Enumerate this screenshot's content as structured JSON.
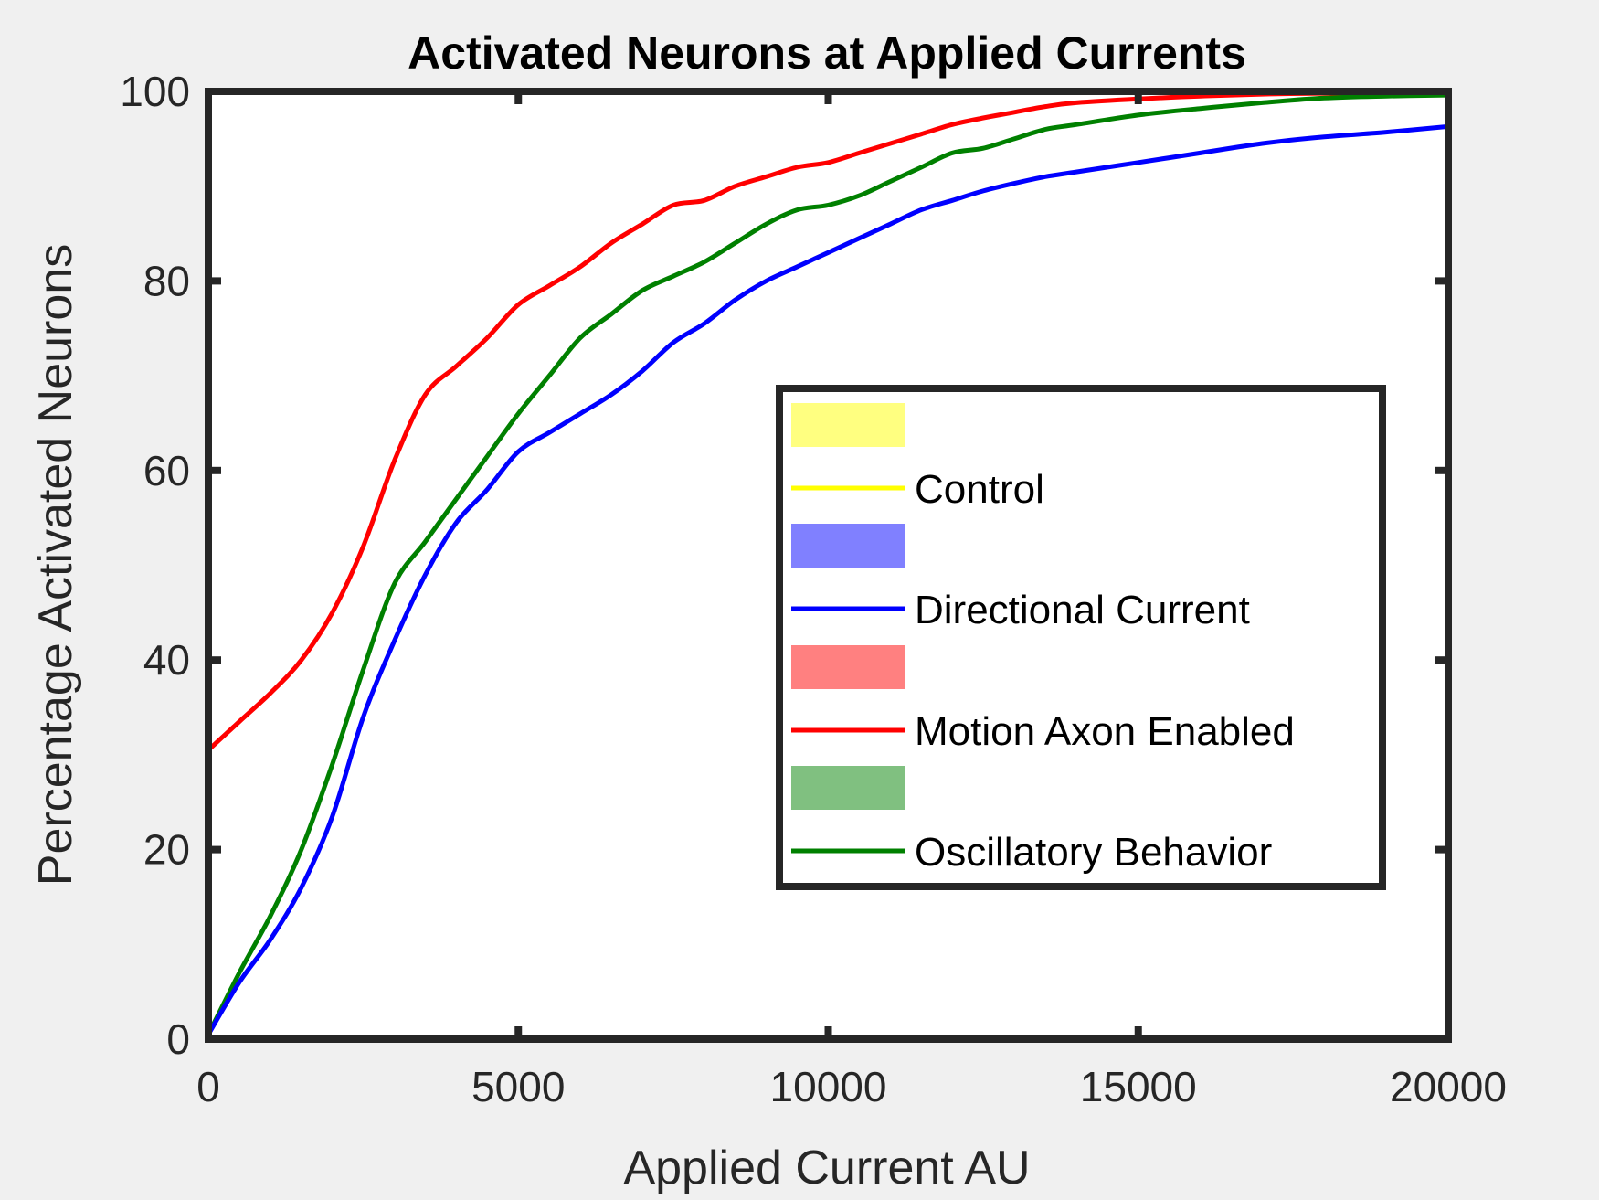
{
  "chart_data": {
    "type": "line",
    "title": "Activated Neurons at Applied Currents",
    "xlabel": "Applied Current AU",
    "ylabel": "Percentage Activated Neurons",
    "xlim": [
      0,
      20000
    ],
    "ylim": [
      0,
      100
    ],
    "xticks": [
      0,
      5000,
      10000,
      15000,
      20000
    ],
    "yticks": [
      0,
      20,
      40,
      60,
      80,
      100
    ],
    "xtick_labels": [
      "0",
      "5000",
      "10000",
      "15000",
      "20000"
    ],
    "ytick_labels": [
      "0",
      "20",
      "40",
      "60",
      "80",
      "100"
    ],
    "grid": false,
    "legend_position": "center-right",
    "legend": [
      {
        "kind": "patch",
        "label": "",
        "color": "#ffff80"
      },
      {
        "kind": "line",
        "label": "Control",
        "color": "#ffff00"
      },
      {
        "kind": "patch",
        "label": "",
        "color": "#8080ff"
      },
      {
        "kind": "line",
        "label": "Directional Current",
        "color": "#0000ff"
      },
      {
        "kind": "patch",
        "label": "",
        "color": "#ff8080"
      },
      {
        "kind": "line",
        "label": "Motion Axon Enabled",
        "color": "#ff0000"
      },
      {
        "kind": "patch",
        "label": "",
        "color": "#80c080"
      },
      {
        "kind": "line",
        "label": "Oscillatory Behavior",
        "color": "#008000"
      }
    ],
    "series": [
      {
        "name": "Motion Axon Enabled",
        "color": "#ff0000",
        "x": [
          0,
          500,
          1000,
          1500,
          2000,
          2500,
          3000,
          3500,
          4000,
          4500,
          5000,
          5500,
          6000,
          6500,
          7000,
          7500,
          8000,
          8500,
          9000,
          9500,
          10000,
          10500,
          11000,
          11500,
          12000,
          12500,
          13000,
          13500,
          14000,
          15000,
          16000,
          17000,
          18000,
          19000,
          20000
        ],
        "y": [
          30.5,
          33.5,
          36.5,
          40,
          45,
          52,
          61,
          68,
          71,
          74,
          77.5,
          79.5,
          81.5,
          84,
          86,
          88,
          88.5,
          90,
          91,
          92,
          92.5,
          93.5,
          94.5,
          95.5,
          96.5,
          97.2,
          97.8,
          98.4,
          98.8,
          99.2,
          99.5,
          99.7,
          99.8,
          99.8,
          99.8
        ]
      },
      {
        "name": "Oscillatory Behavior",
        "color": "#008000",
        "x": [
          0,
          500,
          1000,
          1500,
          2000,
          2500,
          3000,
          3500,
          4000,
          4500,
          5000,
          5500,
          6000,
          6500,
          7000,
          7500,
          8000,
          8500,
          9000,
          9500,
          10000,
          10500,
          11000,
          11500,
          12000,
          12500,
          13000,
          13500,
          14000,
          15000,
          16000,
          17000,
          18000,
          19000,
          20000
        ],
        "y": [
          0.5,
          7,
          13,
          20,
          29,
          39,
          48,
          52.5,
          57,
          61.5,
          66,
          70,
          74,
          76.5,
          79,
          80.5,
          82,
          84,
          86,
          87.5,
          88,
          89,
          90.5,
          92,
          93.5,
          94,
          95,
          96,
          96.5,
          97.5,
          98.2,
          98.8,
          99.3,
          99.5,
          99.6
        ]
      },
      {
        "name": "Directional Current",
        "color": "#0000ff",
        "x": [
          0,
          500,
          1000,
          1500,
          2000,
          2500,
          3000,
          3500,
          4000,
          4500,
          5000,
          5500,
          6000,
          6500,
          7000,
          7500,
          8000,
          8500,
          9000,
          9500,
          10000,
          10500,
          11000,
          11500,
          12000,
          12500,
          13000,
          13500,
          14000,
          15000,
          16000,
          17000,
          18000,
          19000,
          20000
        ],
        "y": [
          0.5,
          6,
          10.5,
          16,
          23.5,
          34,
          42,
          49,
          54.5,
          58,
          62,
          64,
          66,
          68,
          70.5,
          73.5,
          75.5,
          78,
          80,
          81.5,
          83,
          84.5,
          86,
          87.5,
          88.5,
          89.5,
          90.3,
          91,
          91.5,
          92.5,
          93.5,
          94.5,
          95.2,
          95.7,
          96.3
        ]
      }
    ]
  }
}
